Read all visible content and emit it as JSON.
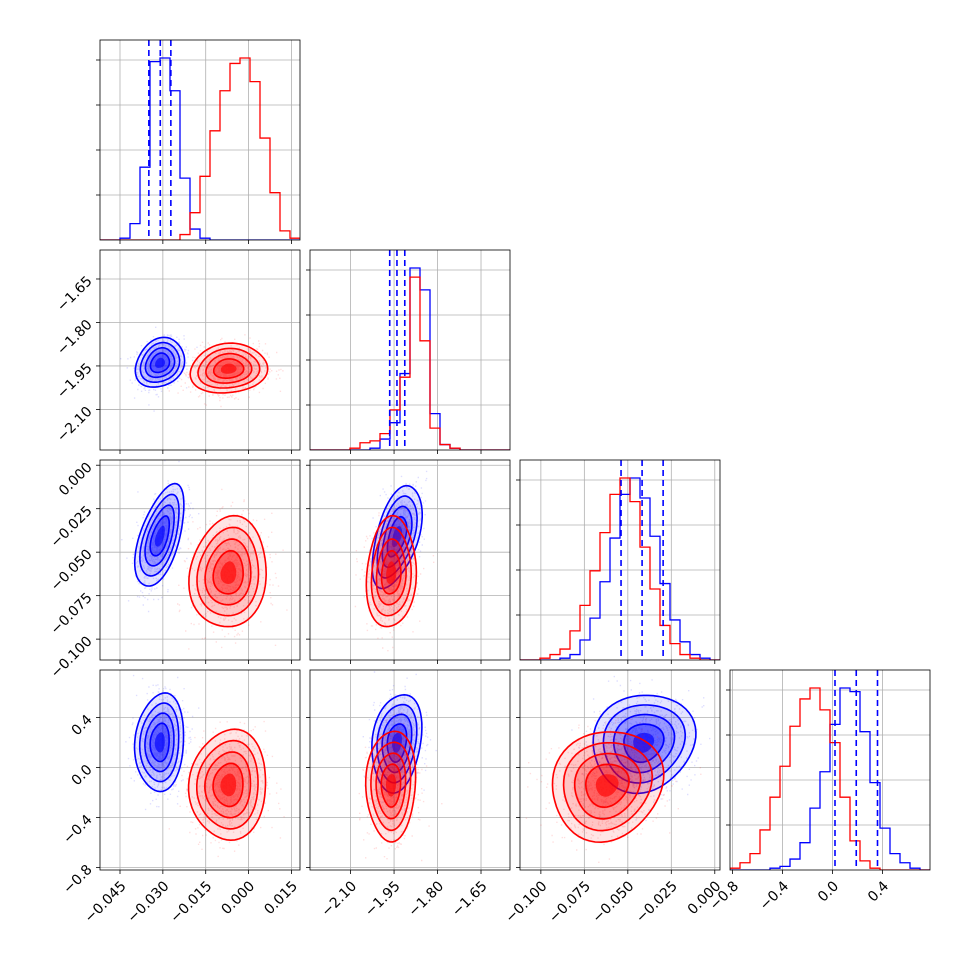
{
  "chart_data": {
    "type": "corner",
    "series": [
      {
        "name": "",
        "color": "#0000ff"
      },
      {
        "name": "",
        "color": "#ff0000"
      }
    ],
    "params": [
      {
        "key": "p0",
        "lim": [
          -0.052,
          0.018
        ],
        "ticks": [
          -0.045,
          -0.03,
          -0.015,
          0.0,
          0.015
        ],
        "tick_labels": [
          "−0.045",
          "−0.030",
          "−0.015",
          "0.000",
          "0.015"
        ]
      },
      {
        "key": "p1",
        "lim": [
          -2.24,
          -1.55
        ],
        "ticks": [
          -2.1,
          -1.95,
          -1.8,
          -1.65
        ],
        "tick_labels": [
          "−2.10",
          "−1.95",
          "−1.80",
          "−1.65"
        ]
      },
      {
        "key": "p2",
        "lim": [
          -0.112,
          0.003
        ],
        "ticks": [
          -0.1,
          -0.075,
          -0.05,
          -0.025,
          0.0
        ],
        "tick_labels": [
          "−0.100",
          "−0.075",
          "−0.050",
          "−0.025",
          "0.000"
        ]
      },
      {
        "key": "p3",
        "lim": [
          -0.82,
          0.78
        ],
        "ticks": [
          -0.8,
          -0.4,
          0.0,
          0.4
        ],
        "tick_labels": [
          "−0.8",
          "−0.4",
          "0.0",
          "0.4"
        ]
      }
    ],
    "quantiles_blue": [
      [
        -0.0349,
        -0.0309,
        -0.0272
      ],
      [
        -1.965,
        -1.94,
        -1.913
      ],
      [
        -0.0539,
        -0.0418,
        -0.0297
      ],
      [
        0.02,
        0.19,
        0.36
      ]
    ],
    "histograms": [
      {
        "param": "p0",
        "edges_start": -0.052,
        "bin_width": 0.0035,
        "blue": [
          0,
          0,
          1,
          9,
          40,
          98,
          100,
          82,
          34,
          6,
          1,
          0,
          0,
          0,
          0,
          0,
          0,
          0,
          0,
          0
        ],
        "red": [
          0,
          0,
          0,
          0,
          0,
          0,
          0,
          0,
          3,
          15,
          35,
          60,
          82,
          97,
          100,
          87,
          56,
          26,
          5,
          1
        ]
      },
      {
        "param": "p1",
        "edges_start": -2.24,
        "bin_width": 0.0345,
        "blue": [
          0,
          0,
          0,
          0,
          0,
          0,
          1,
          6,
          15,
          42,
          100,
          88,
          20,
          3,
          1,
          0,
          0,
          0,
          0,
          0
        ],
        "red": [
          0,
          0,
          0,
          0,
          1,
          4,
          5,
          9,
          22,
          40,
          95,
          60,
          12,
          3,
          1,
          0,
          0,
          0,
          0,
          0
        ]
      },
      {
        "param": "p2",
        "edges_start": -0.112,
        "bin_width": 0.00575,
        "blue": [
          0,
          0,
          0,
          0,
          1,
          3,
          11,
          23,
          43,
          67,
          91,
          100,
          89,
          68,
          42,
          22,
          10,
          3,
          1,
          0
        ],
        "red": [
          0,
          0,
          1,
          3,
          6,
          16,
          30,
          49,
          70,
          91,
          100,
          87,
          62,
          39,
          19,
          9,
          3,
          1,
          0,
          0
        ]
      },
      {
        "param": "p3",
        "edges_start": -0.82,
        "bin_width": 0.08,
        "blue": [
          0,
          0,
          0,
          0,
          1,
          2,
          6,
          15,
          34,
          54,
          80,
          100,
          98,
          76,
          48,
          23,
          9,
          4,
          1,
          0
        ],
        "red": [
          1,
          4,
          9,
          22,
          40,
          57,
          79,
          94,
          100,
          88,
          70,
          40,
          16,
          5,
          1,
          0,
          0,
          0,
          0,
          0
        ]
      }
    ],
    "gaussians_2d": {
      "blue": {
        "mean": [
          -0.031,
          -1.94,
          -0.041,
          0.2
        ],
        "sd": [
          0.0035,
          0.035,
          0.012,
          0.16
        ],
        "corr": [
          [
            1,
            0.2,
            0.55,
            0.1
          ],
          [
            0.2,
            1,
            0.5,
            0.2
          ],
          [
            0.55,
            0.5,
            1,
            0.1
          ],
          [
            0.1,
            0.2,
            0.1,
            1
          ]
        ]
      },
      "red": {
        "mean": [
          -0.007,
          -1.96,
          -0.062,
          -0.14
        ],
        "sd": [
          0.0055,
          0.035,
          0.013,
          0.18
        ],
        "corr": [
          [
            1,
            0.1,
            0.1,
            0.05
          ],
          [
            0.1,
            1,
            0.1,
            0.05
          ],
          [
            0.1,
            0.1,
            1,
            0.1
          ],
          [
            0.05,
            0.05,
            0.1,
            1
          ]
        ]
      }
    },
    "grid": true
  }
}
